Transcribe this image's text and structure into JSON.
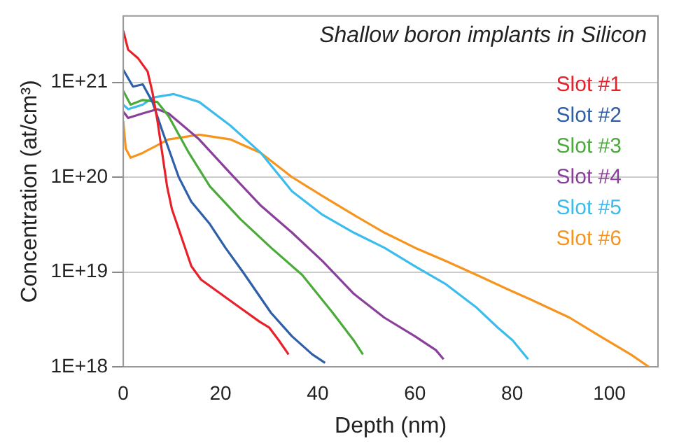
{
  "chart_data": {
    "type": "line",
    "title": "Shallow boron implants in Silicon",
    "xlabel": "Depth (nm)",
    "ylabel": "Concentration (at/cm³)",
    "log": "y",
    "grid": "y",
    "legend": "top right",
    "marker": "none",
    "line_style": "solid",
    "xlim": [
      0,
      110
    ],
    "xticks": [
      0,
      20,
      40,
      60,
      80,
      100
    ],
    "ylim": [
      1e+18,
      5e+21
    ],
    "yticks": [
      {
        "value": 1e+18,
        "label": "1E+18"
      },
      {
        "value": 1e+19,
        "label": "1E+19"
      },
      {
        "value": 1e+20,
        "label": "1E+20"
      },
      {
        "value": 1e+21,
        "label": "1E+21"
      }
    ],
    "series": [
      {
        "name": "Slot #1",
        "color": "#e8202a",
        "x": [
          0,
          1,
          3,
          5,
          6,
          7,
          8,
          9,
          10,
          12,
          14,
          16,
          20,
          24,
          28,
          30,
          32,
          34
        ],
        "values": [
          3.5e+21,
          2.2e+21,
          1.8e+21,
          1.3e+21,
          7.8e+20,
          4e+20,
          1.8e+20,
          8e+19,
          4.6e+19,
          2.3e+19,
          1.15e+19,
          8.3e+18,
          5.9e+18,
          4.2e+18,
          3e+18,
          2.6e+18,
          1.9e+18,
          1.35e+18
        ]
      },
      {
        "name": "Slot #2",
        "color": "#2e5fa8",
        "x": [
          0,
          2,
          4,
          6,
          8,
          11.4,
          14,
          17.8,
          21,
          24.6,
          30.4,
          34.7,
          38.9,
          41.5
        ],
        "values": [
          1.35e+21,
          9e+20,
          9.5e+20,
          6.2e+20,
          3.1e+20,
          1e+20,
          5.5e+19,
          3.2e+19,
          1.8e+19,
          1e+19,
          3.7e+18,
          2.1e+18,
          1.35e+18,
          1.1e+18
        ]
      },
      {
        "name": "Slot #3",
        "color": "#4aab3a",
        "x": [
          0,
          1.5,
          4,
          7,
          9.3,
          13.5,
          17.8,
          24.1,
          30.4,
          36.8,
          43.1,
          47.4,
          49.3
        ],
        "values": [
          8.1e+20,
          5.8e+20,
          6.5e+20,
          6.2e+20,
          4.4e+20,
          1.8e+20,
          8e+19,
          3.6e+19,
          1.8e+19,
          9.3e+18,
          3.7e+18,
          1.9e+18,
          1.35e+18
        ]
      },
      {
        "name": "Slot #4",
        "color": "#8a3f9a",
        "x": [
          0,
          1,
          4,
          7,
          9.3,
          15.6,
          22,
          28.3,
          34.7,
          41,
          47.4,
          53.7,
          60,
          64.3,
          65.9
        ],
        "values": [
          4.9e+20,
          4.2e+20,
          4.7e+20,
          5.2e+20,
          4.7e+20,
          2.5e+20,
          1.1e+20,
          5e+19,
          2.6e+19,
          1.3e+19,
          5.9e+18,
          3.3e+18,
          2.1e+18,
          1.5e+18,
          1.2e+18
        ]
      },
      {
        "name": "Slot #5",
        "color": "#3bbcec",
        "x": [
          0,
          1,
          4,
          6.1,
          10.4,
          15.6,
          22,
          28.3,
          34.7,
          41,
          47.4,
          53.7,
          60,
          66.4,
          72.7,
          77,
          80.1,
          83.3
        ],
        "values": [
          5.8e+20,
          5.2e+20,
          5.8e+20,
          6.9e+20,
          7.5e+20,
          6.2e+20,
          3.5e+20,
          1.8e+20,
          7.1e+19,
          4e+19,
          2.6e+19,
          1.8e+19,
          1.15e+19,
          7.4e+18,
          4.2e+18,
          2.6e+18,
          1.9e+18,
          1.2e+18
        ]
      },
      {
        "name": "Slot #6",
        "color": "#f7941d",
        "x": [
          0,
          0.5,
          1.5,
          4,
          9.3,
          15.6,
          22,
          28.3,
          34.7,
          41,
          47.4,
          53.7,
          60,
          66.4,
          72.7,
          79,
          85.4,
          91.8,
          98.1,
          104.4,
          108.1
        ],
        "values": [
          3.9e+20,
          2e+20,
          1.6e+20,
          1.8e+20,
          2.5e+20,
          2.8e+20,
          2.5e+20,
          1.8e+20,
          1e+20,
          6.3e+19,
          4e+19,
          2.6e+19,
          1.8e+19,
          1.3e+19,
          9.3e+18,
          6.6e+18,
          4.7e+18,
          3.3e+18,
          2.1e+18,
          1.35e+18,
          1e+18
        ]
      }
    ]
  }
}
